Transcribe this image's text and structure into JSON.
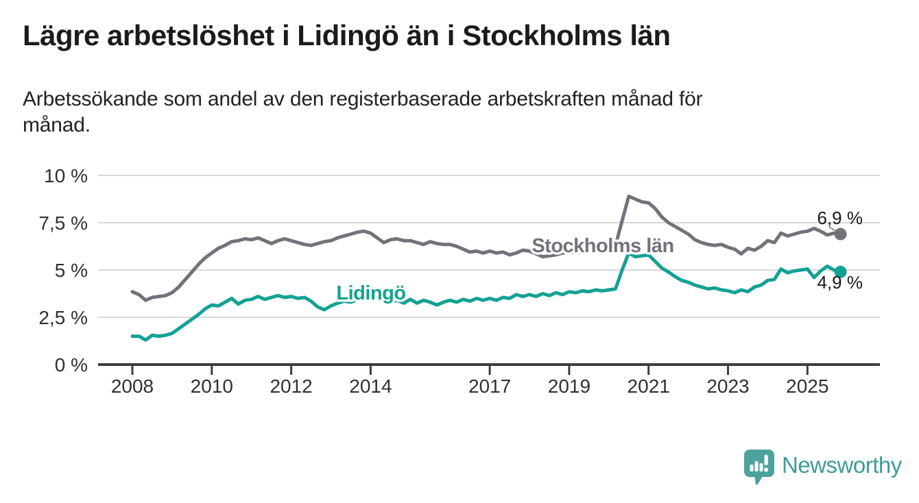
{
  "header": {
    "title": "Lägre arbetslöshet i Lidingö än i Stockholms län",
    "subtitle": "Arbetssökande som andel av den registerbaserade arbetskraften månad för\nmånad."
  },
  "chart_data": {
    "type": "line",
    "title": "Lägre arbetslöshet i Lidingö än i Stockholms län",
    "y_unit": "%",
    "ylim": [
      0,
      10
    ],
    "grid": "horizontal",
    "x_start": 2008.0,
    "x_step_years": 0.1666667,
    "x_axis": {
      "ticks": [
        {
          "value": 2008,
          "label": "2008"
        },
        {
          "value": 2010,
          "label": "2010"
        },
        {
          "value": 2012,
          "label": "2012"
        },
        {
          "value": 2014,
          "label": "2014"
        },
        {
          "value": 2017,
          "label": "2017"
        },
        {
          "value": 2019,
          "label": "2019"
        },
        {
          "value": 2021,
          "label": "2021"
        },
        {
          "value": 2023,
          "label": "2023"
        },
        {
          "value": 2025,
          "label": "2025"
        }
      ]
    },
    "y_axis": {
      "ticks": [
        {
          "value": 0,
          "label": "0 %"
        },
        {
          "value": 2.5,
          "label": "2,5 %"
        },
        {
          "value": 5,
          "label": "5 %"
        },
        {
          "value": 7.5,
          "label": "7,5 %"
        },
        {
          "value": 10,
          "label": "10 %"
        }
      ]
    },
    "series": [
      {
        "name": "Stockholms län",
        "color": "#75717A",
        "end_label": "6,9 %",
        "end_value": 6.9,
        "values": [
          3.85,
          3.7,
          3.4,
          3.55,
          3.6,
          3.65,
          3.8,
          4.1,
          4.5,
          4.9,
          5.3,
          5.65,
          5.9,
          6.15,
          6.3,
          6.5,
          6.55,
          6.65,
          6.6,
          6.7,
          6.55,
          6.4,
          6.55,
          6.65,
          6.55,
          6.45,
          6.35,
          6.3,
          6.4,
          6.5,
          6.55,
          6.7,
          6.8,
          6.9,
          7.0,
          7.05,
          6.95,
          6.7,
          6.45,
          6.6,
          6.65,
          6.55,
          6.55,
          6.45,
          6.35,
          6.5,
          6.4,
          6.35,
          6.35,
          6.25,
          6.1,
          5.95,
          6.0,
          5.9,
          6.0,
          5.9,
          5.95,
          5.8,
          5.9,
          6.05,
          6.0,
          5.85,
          5.7,
          5.75,
          5.8,
          5.9,
          5.95,
          5.9,
          5.95,
          6.0,
          6.1,
          6.15,
          6.2,
          6.3,
          7.6,
          8.9,
          8.75,
          8.6,
          8.55,
          8.25,
          7.8,
          7.5,
          7.3,
          7.1,
          6.9,
          6.6,
          6.45,
          6.35,
          6.3,
          6.35,
          6.2,
          6.1,
          5.85,
          6.15,
          6.05,
          6.25,
          6.55,
          6.45,
          6.95,
          6.8,
          6.9,
          7.0,
          7.05,
          7.2,
          7.05,
          6.85,
          6.95,
          6.9
        ]
      },
      {
        "name": "Lidingö",
        "color": "#14A195",
        "end_label": "4,9 %",
        "end_value": 4.9,
        "values": [
          1.5,
          1.5,
          1.3,
          1.55,
          1.5,
          1.55,
          1.65,
          1.9,
          2.15,
          2.4,
          2.65,
          2.95,
          3.15,
          3.1,
          3.3,
          3.5,
          3.2,
          3.4,
          3.45,
          3.6,
          3.45,
          3.55,
          3.65,
          3.55,
          3.6,
          3.5,
          3.55,
          3.35,
          3.05,
          2.9,
          3.1,
          3.25,
          3.35,
          3.3,
          3.45,
          3.5,
          3.55,
          3.45,
          3.35,
          3.3,
          3.4,
          3.25,
          3.45,
          3.25,
          3.4,
          3.3,
          3.15,
          3.3,
          3.4,
          3.3,
          3.45,
          3.35,
          3.5,
          3.4,
          3.5,
          3.4,
          3.55,
          3.5,
          3.7,
          3.6,
          3.7,
          3.6,
          3.75,
          3.65,
          3.8,
          3.7,
          3.85,
          3.8,
          3.9,
          3.85,
          3.95,
          3.9,
          3.95,
          4.0,
          5.0,
          5.9,
          5.7,
          5.75,
          5.8,
          5.45,
          5.1,
          4.9,
          4.65,
          4.45,
          4.35,
          4.2,
          4.1,
          4.0,
          4.05,
          3.95,
          3.9,
          3.8,
          3.95,
          3.85,
          4.1,
          4.2,
          4.45,
          4.5,
          5.05,
          4.85,
          4.95,
          5.0,
          5.05,
          4.6,
          4.95,
          5.2,
          5.0,
          4.9
        ]
      }
    ],
    "colors": {
      "gridline": "#d8d8d8",
      "axis": "#3d3d3d",
      "axis_text": "#303030"
    },
    "legend_position": "inline-labels"
  },
  "branding": {
    "name": "Newsworthy",
    "icon": "bar-chart-speech-bubble-icon",
    "bubble_color": "#4CA29C",
    "text_color": "#3C9D96"
  }
}
